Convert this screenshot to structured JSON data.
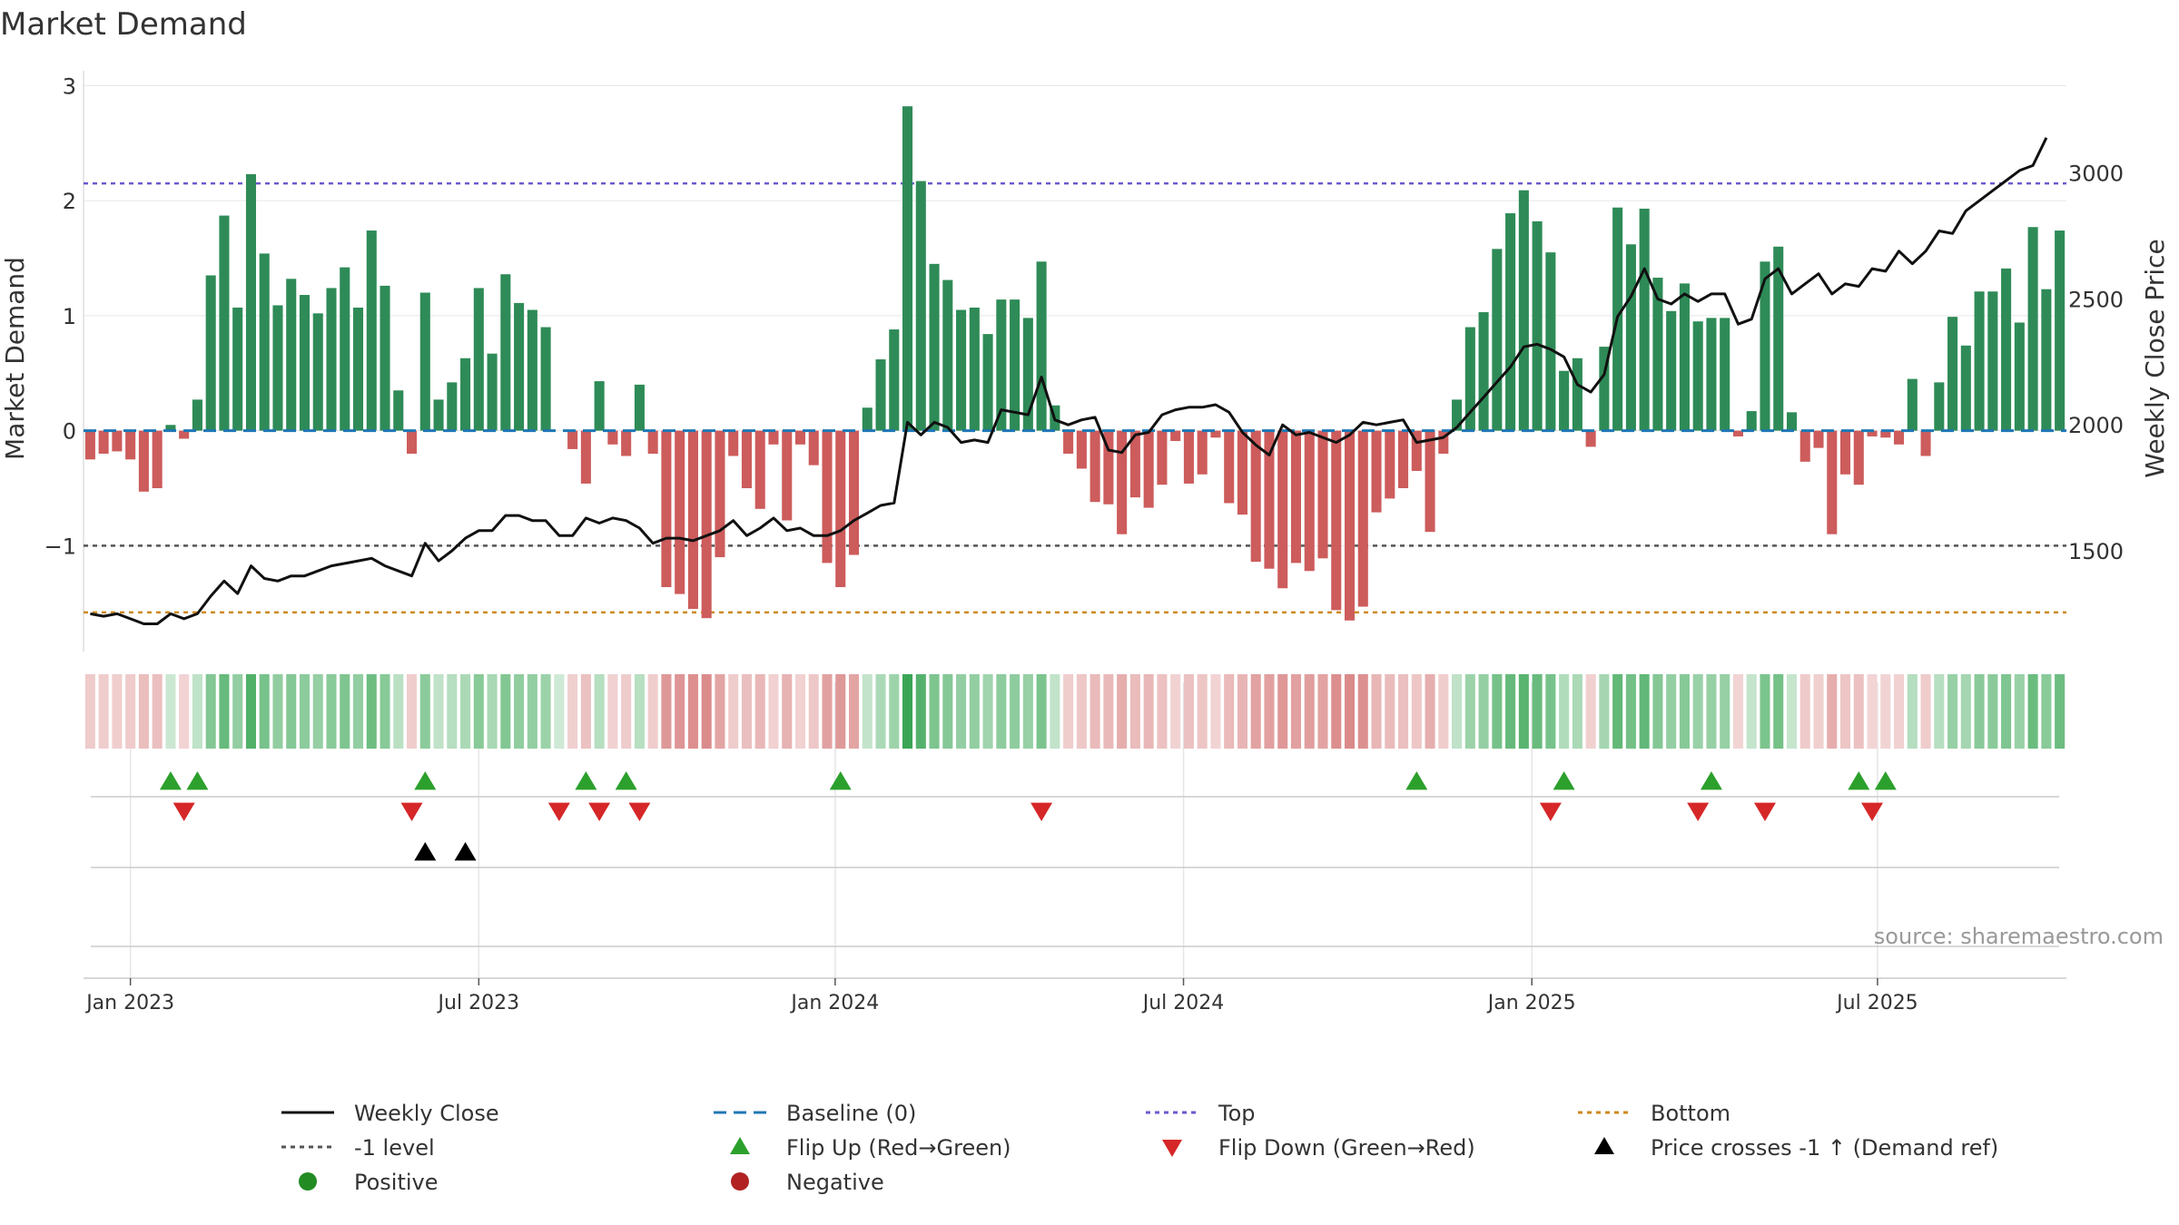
{
  "colors": {
    "positive": "#2e8b57",
    "negative": "#cd5c5c",
    "price": "#111111",
    "baseline": "#1f77b4",
    "top": "#6a5acd",
    "bottom": "#cd8a1f",
    "minus1": "#555555",
    "flip_up": "#2ca02c",
    "flip_down": "#d62728",
    "cross": "#000000",
    "grid": "#e6e6e6",
    "dot_positive": "#228b22",
    "dot_negative": "#b22222",
    "source": "#999999"
  },
  "chart_data": {
    "type": "bar",
    "title": "Market Demand",
    "ylabel": "Market Demand",
    "y2label": "Weekly Close Price",
    "ylim": [
      -1.92,
      3.05
    ],
    "y2lim": [
      1100,
      3370
    ],
    "yticks": [
      {
        "v": 3,
        "label": "3"
      },
      {
        "v": 2,
        "label": "2"
      },
      {
        "v": 1,
        "label": "1"
      },
      {
        "v": 0,
        "label": "0"
      },
      {
        "v": -1,
        "label": "−1"
      }
    ],
    "y2ticks": [
      {
        "v": 3000,
        "label": "3000"
      },
      {
        "v": 2500,
        "label": "2500"
      },
      {
        "v": 2000,
        "label": "2000"
      },
      {
        "v": 1500,
        "label": "1500"
      }
    ],
    "xticks": [
      {
        "index": 3,
        "label": "Jan 2023"
      },
      {
        "index": 29,
        "label": "Jul 2023"
      },
      {
        "index": 55.6,
        "label": "Jan 2024"
      },
      {
        "index": 81.6,
        "label": "Jul 2024"
      },
      {
        "index": 107.6,
        "label": "Jan 2025"
      },
      {
        "index": 133.4,
        "label": "Jul 2025"
      }
    ],
    "top_level": 2.15,
    "bottom_level": -1.58,
    "minus1_level": -1.0,
    "demand": [
      -0.25,
      -0.2,
      -0.18,
      -0.25,
      -0.53,
      -0.5,
      0.05,
      -0.07,
      0.27,
      1.35,
      1.87,
      1.07,
      2.23,
      1.54,
      1.09,
      1.32,
      1.18,
      1.02,
      1.24,
      1.42,
      1.07,
      1.74,
      1.26,
      0.35,
      -0.2,
      1.2,
      0.27,
      0.42,
      0.63,
      1.24,
      0.67,
      1.36,
      1.11,
      1.05,
      0.9,
      0,
      -0.16,
      -0.46,
      0.43,
      -0.12,
      -0.22,
      0.4,
      -0.2,
      -1.36,
      -1.42,
      -1.55,
      -1.63,
      -1.1,
      -0.22,
      -0.5,
      -0.68,
      -0.12,
      -0.78,
      -0.12,
      -0.3,
      -1.15,
      -1.36,
      -1.08,
      0.2,
      0.62,
      0.88,
      2.82,
      2.17,
      1.45,
      1.31,
      1.05,
      1.07,
      0.84,
      1.14,
      1.14,
      0.98,
      1.47,
      0.22,
      -0.2,
      -0.33,
      -0.62,
      -0.64,
      -0.9,
      -0.58,
      -0.67,
      -0.47,
      -0.09,
      -0.46,
      -0.38,
      -0.06,
      -0.63,
      -0.73,
      -1.14,
      -1.2,
      -1.37,
      -1.15,
      -1.22,
      -1.11,
      -1.56,
      -1.65,
      -1.53,
      -0.71,
      -0.59,
      -0.5,
      -0.35,
      -0.88,
      -0.2,
      0.27,
      0.9,
      1.03,
      1.58,
      1.89,
      2.09,
      1.82,
      1.55,
      0.52,
      0.63,
      -0.14,
      0.73,
      1.94,
      1.62,
      1.93,
      1.33,
      1.04,
      1.28,
      0.95,
      0.98,
      0.98,
      -0.05,
      0.17,
      1.47,
      1.6,
      0.16,
      -0.27,
      -0.15,
      -0.9,
      -0.38,
      -0.47,
      -0.05,
      -0.06,
      -0.12,
      0.45,
      -0.22,
      0.42,
      0.99,
      0.74,
      1.21,
      1.21,
      1.41,
      0.94,
      1.77,
      1.23,
      1.74
    ],
    "price": [
      1250,
      1240,
      1250,
      1230,
      1210,
      1210,
      1250,
      1230,
      1250,
      1320,
      1380,
      1330,
      1440,
      1390,
      1380,
      1400,
      1400,
      1420,
      1440,
      1450,
      1460,
      1470,
      1440,
      1420,
      1400,
      1530,
      1460,
      1500,
      1550,
      1580,
      1580,
      1640,
      1640,
      1620,
      1620,
      1560,
      1560,
      1630,
      1610,
      1630,
      1620,
      1590,
      1530,
      1550,
      1550,
      1540,
      1560,
      1580,
      1620,
      1560,
      1590,
      1630,
      1580,
      1590,
      1560,
      1560,
      1580,
      1620,
      1650,
      1680,
      1690,
      2010,
      1960,
      2010,
      1990,
      1930,
      1940,
      1930,
      2060,
      2050,
      2040,
      2190,
      2020,
      2000,
      2020,
      2030,
      1900,
      1890,
      1960,
      1970,
      2040,
      2060,
      2070,
      2070,
      2080,
      2050,
      1970,
      1920,
      1880,
      2000,
      1960,
      1970,
      1950,
      1930,
      1960,
      2010,
      2000,
      2010,
      2020,
      1930,
      1940,
      1950,
      1990,
      2050,
      2110,
      2170,
      2230,
      2310,
      2320,
      2300,
      2270,
      2160,
      2130,
      2200,
      2430,
      2510,
      2620,
      2500,
      2480,
      2520,
      2490,
      2520,
      2520,
      2400,
      2420,
      2580,
      2620,
      2520,
      2560,
      2600,
      2520,
      2560,
      2550,
      2620,
      2610,
      2690,
      2640,
      2690,
      2770,
      2760,
      2850,
      2890,
      2930,
      2970,
      3010,
      3030,
      3140
    ],
    "heat_strip": "intensity shading of each weekly demand value",
    "flip_up": [
      6,
      8,
      25,
      37,
      40,
      56,
      99,
      110,
      121,
      132,
      134
    ],
    "flip_down": [
      7,
      24,
      35,
      38,
      41,
      71,
      109,
      120,
      125,
      133
    ],
    "price_cross_up": [
      25,
      28
    ],
    "legend": [
      {
        "key": "weekly_close",
        "label": "Weekly Close"
      },
      {
        "key": "baseline",
        "label": "Baseline (0)"
      },
      {
        "key": "top",
        "label": "Top"
      },
      {
        "key": "bottom",
        "label": "Bottom"
      },
      {
        "key": "minus1",
        "label": "-1 level"
      },
      {
        "key": "flip_up",
        "label": "Flip Up (Red→Green)"
      },
      {
        "key": "flip_down",
        "label": "Flip Down (Green→Red)"
      },
      {
        "key": "cross",
        "label": "Price crosses -1 ↑ (Demand ref)"
      },
      {
        "key": "positive",
        "label": "Positive"
      },
      {
        "key": "negative",
        "label": "Negative"
      }
    ],
    "source": "source: sharemaestro.com"
  }
}
